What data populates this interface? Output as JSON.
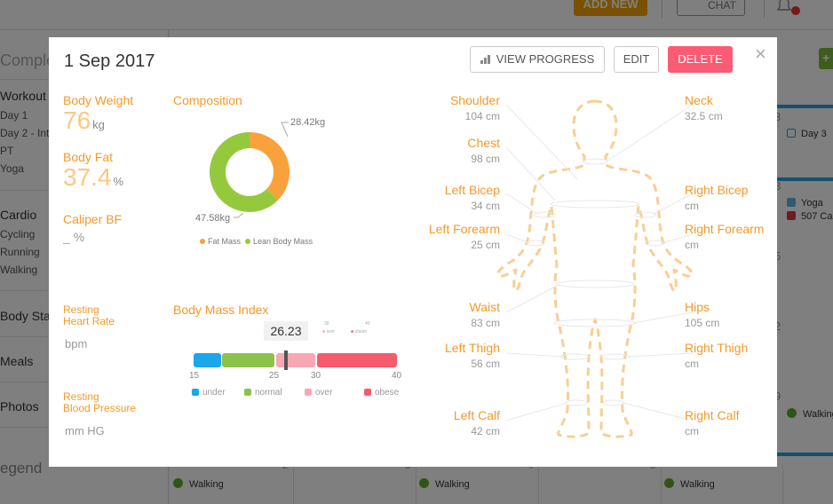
{
  "background": {
    "add_new": "ADD NEW",
    "chat": "CHAT",
    "sidebar": {
      "title": "Comple",
      "workout": "Workout",
      "workout_items": [
        "Day 1",
        "Day 2 - Inte",
        "PT",
        "Yoga"
      ],
      "cardio": "Cardio",
      "cardio_items": [
        "Cycling",
        "Running",
        "Walking"
      ],
      "body_stats": "Body Stat",
      "meals": "Meals",
      "photos": "Photos",
      "legend": "egend"
    },
    "calendar": {
      "add_symbol": "+",
      "day_numbers": [
        "3",
        "5",
        "2",
        "9",
        "2",
        "3",
        "4",
        "5"
      ],
      "events": {
        "day3": "Day 3",
        "yoga": "Yoga",
        "cal": "507 Ca",
        "walking_right": "Walking",
        "walking": "Walking"
      }
    }
  },
  "modal": {
    "date": "1 Sep 2017",
    "buttons": {
      "view_progress": "VIEW PROGRESS",
      "edit": "EDIT",
      "delete": "DELETE"
    },
    "close": "×",
    "body_weight": {
      "label": "Body Weight",
      "value": "76",
      "unit": "kg"
    },
    "body_fat": {
      "label": "Body Fat",
      "value": "37.4",
      "unit": "%"
    },
    "caliper_bf": {
      "label": "Caliper BF",
      "value": "_",
      "unit": "%"
    },
    "resting_hr": {
      "label_line1": "Resting",
      "label_line2": "Heart Rate",
      "unit": "bpm"
    },
    "resting_bp": {
      "label_line1": "Resting",
      "label_line2": "Blood Pressure",
      "unit": "mm HG"
    },
    "composition": {
      "title": "Composition",
      "fat_label": "28.42kg",
      "lean_label": "47.58kg",
      "legend_fat": "Fat Mass",
      "legend_lean": "Lean Body Mass",
      "colors": {
        "fat": "#f9a23b",
        "lean": "#95c93d"
      }
    },
    "bmi": {
      "title": "Body Mass Index",
      "value": "26.23",
      "ticks": [
        "15",
        "25",
        "30",
        "40"
      ],
      "mini_ticks": [
        "30",
        "40"
      ],
      "mini_legend": [
        "over",
        "obese"
      ],
      "legend": [
        "under",
        "normal",
        "over",
        "obese"
      ],
      "colors": {
        "under": "#1aa7ec",
        "normal": "#8bc34a",
        "over": "#f7a8b3",
        "obese": "#f65a6d"
      }
    },
    "measurements_left": [
      {
        "name": "Shoulder",
        "value": "104 cm"
      },
      {
        "name": "Chest",
        "value": "98 cm"
      },
      {
        "name": "Left Bicep",
        "value": "34 cm"
      },
      {
        "name": "Left Forearm",
        "value": "25 cm"
      },
      {
        "name": "Waist",
        "value": "83 cm"
      },
      {
        "name": "Left Thigh",
        "value": "56 cm"
      },
      {
        "name": "Left Calf",
        "value": "42 cm"
      }
    ],
    "measurements_right": [
      {
        "name": "Neck",
        "value": "32.5 cm"
      },
      {
        "name": "Right Bicep",
        "value": "cm"
      },
      {
        "name": "Right Forearm",
        "value": "cm"
      },
      {
        "name": "Hips",
        "value": "105 cm"
      },
      {
        "name": "Right Thigh",
        "value": "cm"
      },
      {
        "name": "Right Calf",
        "value": "cm"
      }
    ]
  }
}
